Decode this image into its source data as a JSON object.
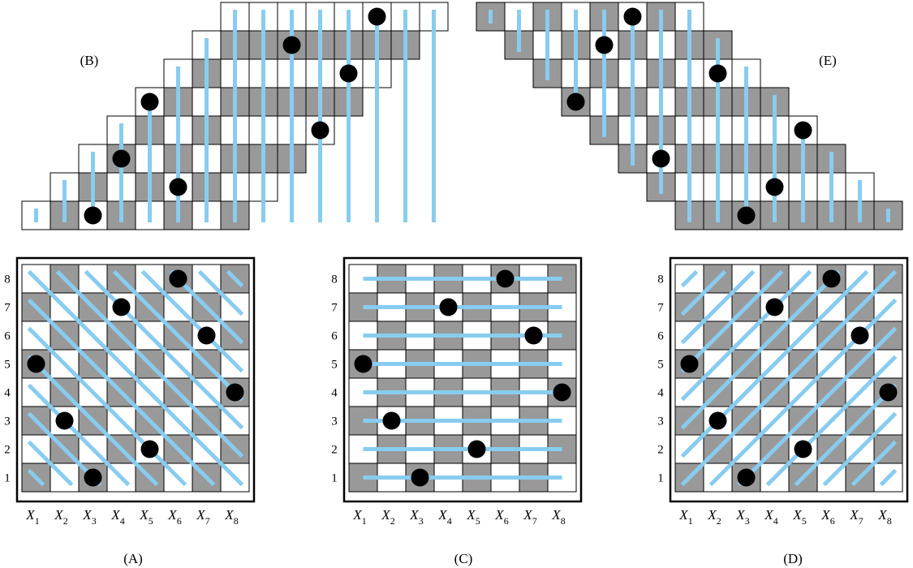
{
  "colors": {
    "dark_cell": "#999999",
    "light_cell": "#ffffff",
    "line": "#88ccf0",
    "dot": "#000000",
    "frame": "#000000"
  },
  "labels": {
    "B": "(B)",
    "E": "(E)",
    "A": "(A)",
    "C": "(C)",
    "D": "(D)"
  },
  "row_labels": [
    "1",
    "2",
    "3",
    "4",
    "5",
    "6",
    "7",
    "8"
  ],
  "column_variables": [
    {
      "base": "X",
      "sub": "1"
    },
    {
      "base": "X",
      "sub": "2"
    },
    {
      "base": "X",
      "sub": "3"
    },
    {
      "base": "X",
      "sub": "4"
    },
    {
      "base": "X",
      "sub": "5"
    },
    {
      "base": "X",
      "sub": "6"
    },
    {
      "base": "X",
      "sub": "7"
    },
    {
      "base": "X",
      "sub": "8"
    }
  ],
  "queens": {
    "description_row_by_column": [
      5,
      3,
      1,
      7,
      2,
      8,
      6,
      4
    ]
  }
}
